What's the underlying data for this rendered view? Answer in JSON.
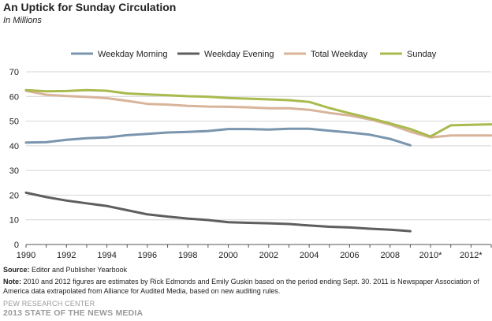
{
  "header": {
    "title": "An Uptick for Sunday Circulation",
    "subtitle": "In Millions"
  },
  "footer": {
    "source_label": "Source:",
    "source_text": "Editor and Publisher Yearbook",
    "note_label": "Note:",
    "note_text": "2010 and 2012 figures are estimates by Rick Edmonds and Emily Guskin based on the period ending Sept. 30. 2011 is Newspaper Association of America data extrapolated from Alliance for Audited Media, based on new auditing rules.",
    "org": "PEW RESEARCH CENTER",
    "report": "2013 STATE OF THE NEWS MEDIA"
  },
  "chart_data": {
    "type": "line",
    "title": "An Uptick for Sunday Circulation",
    "subtitle": "In Millions",
    "xlabel": "",
    "ylabel": "",
    "xlim": [
      1990,
      2013
    ],
    "ylim": [
      0,
      70
    ],
    "yticks": [
      0,
      10,
      20,
      30,
      40,
      50,
      60,
      70
    ],
    "xticks": [
      {
        "value": 1990,
        "label": "1990"
      },
      {
        "value": 1992,
        "label": "1992"
      },
      {
        "value": 1994,
        "label": "1994"
      },
      {
        "value": 1996,
        "label": "1996"
      },
      {
        "value": 1998,
        "label": "1998"
      },
      {
        "value": 2000,
        "label": "2000"
      },
      {
        "value": 2002,
        "label": "2002"
      },
      {
        "value": 2004,
        "label": "2004"
      },
      {
        "value": 2006,
        "label": "2006"
      },
      {
        "value": 2008,
        "label": "2008"
      },
      {
        "value": 2010,
        "label": "2010*"
      },
      {
        "value": 2012,
        "label": "2012*"
      }
    ],
    "grid": "horizontal",
    "legend_position": "top",
    "series": [
      {
        "name": "Weekday Morning",
        "color": "#7a95ae",
        "points": [
          [
            1990,
            41.3
          ],
          [
            1991,
            41.5
          ],
          [
            1992,
            42.4
          ],
          [
            1993,
            43.1
          ],
          [
            1994,
            43.4
          ],
          [
            1995,
            44.3
          ],
          [
            1996,
            44.8
          ],
          [
            1997,
            45.4
          ],
          [
            1998,
            45.6
          ],
          [
            1999,
            46.0
          ],
          [
            2000,
            46.8
          ],
          [
            2001,
            46.8
          ],
          [
            2002,
            46.6
          ],
          [
            2003,
            46.9
          ],
          [
            2004,
            46.9
          ],
          [
            2005,
            46.1
          ],
          [
            2006,
            45.4
          ],
          [
            2007,
            44.5
          ],
          [
            2008,
            42.8
          ],
          [
            2009,
            40.2
          ]
        ]
      },
      {
        "name": "Weekday Evening",
        "color": "#5e5e5e",
        "points": [
          [
            1990,
            21.0
          ],
          [
            1991,
            19.2
          ],
          [
            1992,
            17.8
          ],
          [
            1993,
            16.7
          ],
          [
            1994,
            15.6
          ],
          [
            1995,
            13.9
          ],
          [
            1996,
            12.2
          ],
          [
            1997,
            11.3
          ],
          [
            1998,
            10.5
          ],
          [
            1999,
            9.9
          ],
          [
            2000,
            9.0
          ],
          [
            2001,
            8.8
          ],
          [
            2002,
            8.6
          ],
          [
            2003,
            8.3
          ],
          [
            2004,
            7.7
          ],
          [
            2005,
            7.2
          ],
          [
            2006,
            6.9
          ],
          [
            2007,
            6.4
          ],
          [
            2008,
            6.0
          ],
          [
            2009,
            5.4
          ]
        ]
      },
      {
        "name": "Total Weekday",
        "color": "#d8b49a",
        "points": [
          [
            1990,
            62.3
          ],
          [
            1991,
            60.7
          ],
          [
            1992,
            60.2
          ],
          [
            1993,
            59.8
          ],
          [
            1994,
            59.3
          ],
          [
            1995,
            58.2
          ],
          [
            1996,
            57.0
          ],
          [
            1997,
            56.7
          ],
          [
            1998,
            56.2
          ],
          [
            1999,
            55.9
          ],
          [
            2000,
            55.8
          ],
          [
            2001,
            55.6
          ],
          [
            2002,
            55.2
          ],
          [
            2003,
            55.2
          ],
          [
            2004,
            54.6
          ],
          [
            2005,
            53.3
          ],
          [
            2006,
            52.3
          ],
          [
            2007,
            50.7
          ],
          [
            2008,
            48.6
          ],
          [
            2009,
            45.7
          ],
          [
            2010,
            43.4
          ],
          [
            2011,
            44.2
          ],
          [
            2012,
            44.2
          ],
          [
            2013,
            44.2
          ]
        ]
      },
      {
        "name": "Sunday",
        "color": "#a9ba4e",
        "points": [
          [
            1990,
            62.6
          ],
          [
            1991,
            62.1
          ],
          [
            1992,
            62.2
          ],
          [
            1993,
            62.6
          ],
          [
            1994,
            62.3
          ],
          [
            1995,
            61.2
          ],
          [
            1996,
            60.8
          ],
          [
            1997,
            60.5
          ],
          [
            1998,
            60.1
          ],
          [
            1999,
            59.9
          ],
          [
            2000,
            59.4
          ],
          [
            2001,
            59.1
          ],
          [
            2002,
            58.8
          ],
          [
            2003,
            58.5
          ],
          [
            2004,
            57.8
          ],
          [
            2005,
            55.3
          ],
          [
            2006,
            53.2
          ],
          [
            2007,
            51.2
          ],
          [
            2008,
            49.1
          ],
          [
            2009,
            46.8
          ],
          [
            2010,
            43.8
          ],
          [
            2011,
            48.3
          ],
          [
            2012,
            48.5
          ],
          [
            2013,
            48.7
          ]
        ]
      }
    ]
  }
}
